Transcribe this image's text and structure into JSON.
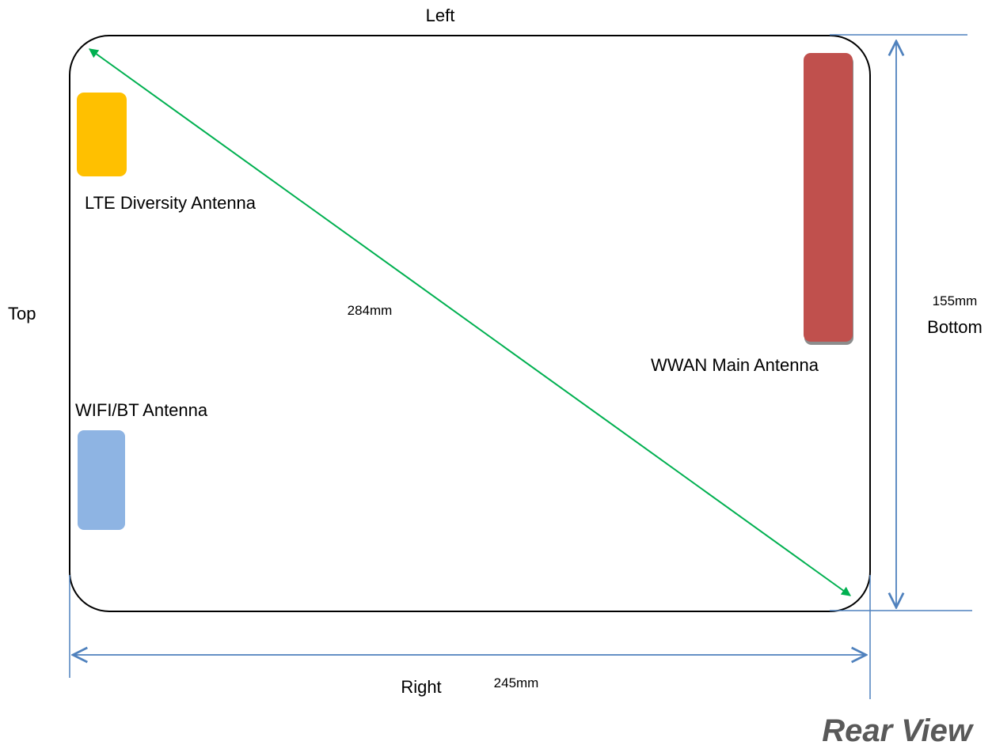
{
  "sides": {
    "left": "Left",
    "top": "Top",
    "right": "Right",
    "bottom": "Bottom"
  },
  "dimensions": {
    "diagonal": "284mm",
    "height": "155mm",
    "width": "245mm"
  },
  "antennas": {
    "lte_diversity": {
      "label": "LTE Diversity Antenna",
      "color": "#FFC000"
    },
    "wwan_main": {
      "label": "WWAN Main Antenna",
      "color": "#C0504D"
    },
    "wifi_bt": {
      "label": "WIFI/BT Antenna",
      "color": "#8EB4E3"
    }
  },
  "view_title": "Rear View",
  "colors": {
    "outline": "#000000",
    "diagonal_arrow": "#00B050",
    "dimension_lines": "#4F81BD",
    "view_title": "#595959"
  }
}
